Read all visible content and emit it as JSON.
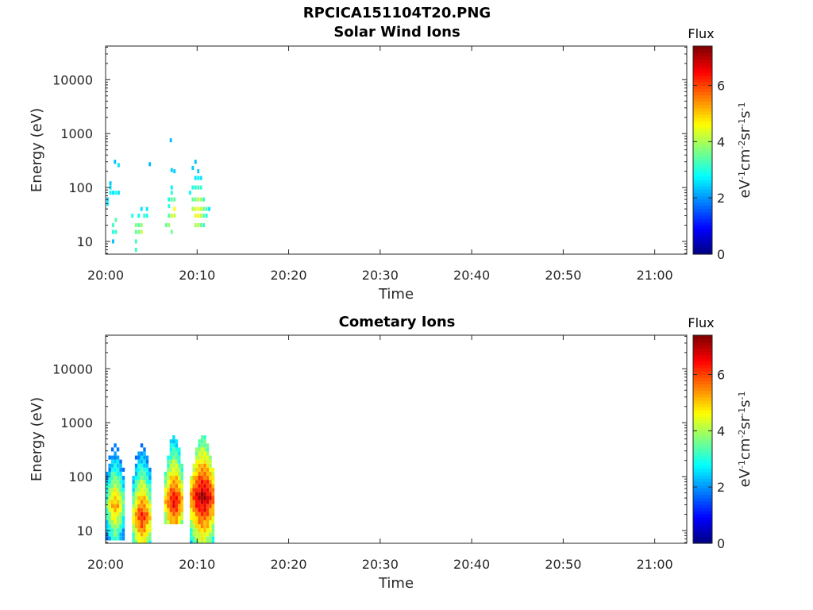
{
  "figure": {
    "suptitle": "RPCICA151104T20.PNG"
  },
  "colormap": "jet",
  "colors": {
    "axis": "#262626",
    "background": "#ffffff"
  },
  "chart_data": [
    {
      "type": "heatmap",
      "title": "Solar Wind Ions",
      "xlabel": "Time",
      "ylabel": "Energy (eV)",
      "x_ticks": [
        "20:00",
        "20:10",
        "20:20",
        "20:30",
        "20:40",
        "20:50",
        "21:00"
      ],
      "x_tick_minutes": [
        0,
        10,
        20,
        30,
        40,
        50,
        60
      ],
      "xlim_minutes": [
        0,
        63.5
      ],
      "y_scale": "log",
      "y_ticks": [
        "10",
        "100",
        "1000",
        "10000"
      ],
      "y_tick_values": [
        10,
        100,
        1000,
        10000
      ],
      "ylim": [
        5.8,
        42000
      ],
      "colorbar": {
        "title": "Flux",
        "label": "eV-1cm-2sr-1s-1",
        "ticks": [
          "0",
          "2",
          "4",
          "6"
        ],
        "tick_values": [
          0,
          2,
          4,
          6
        ],
        "range": [
          0,
          7.4
        ]
      },
      "cells": [
        [
          0.1,
          0.35,
          60,
          2.5
        ],
        [
          0.1,
          0.35,
          50,
          2.7
        ],
        [
          0.4,
          0.65,
          80,
          2.8
        ],
        [
          0.7,
          0.95,
          80,
          2.6
        ],
        [
          0.7,
          0.95,
          20,
          3.2
        ],
        [
          0.7,
          0.95,
          15,
          3.0
        ],
        [
          0.7,
          0.95,
          10,
          2.3
        ],
        [
          1.0,
          1.25,
          25,
          3.4
        ],
        [
          1.0,
          1.25,
          15,
          3.2
        ],
        [
          1.0,
          1.25,
          80,
          2.9
        ],
        [
          1.3,
          1.55,
          80,
          2.6
        ],
        [
          0.9,
          1.15,
          300,
          2.3
        ],
        [
          1.3,
          1.55,
          260,
          2.6
        ],
        [
          0.4,
          0.65,
          120,
          2.4
        ],
        [
          0.4,
          0.65,
          100,
          2.6
        ],
        [
          2.8,
          3.05,
          30,
          3.0
        ],
        [
          3.2,
          3.45,
          10,
          3.3
        ],
        [
          3.2,
          3.45,
          15,
          3.5
        ],
        [
          3.2,
          3.45,
          20,
          3.8
        ],
        [
          3.5,
          3.75,
          15,
          3.6
        ],
        [
          3.5,
          3.75,
          20,
          3.3
        ],
        [
          3.5,
          3.75,
          30,
          2.8
        ],
        [
          3.8,
          4.05,
          20,
          3.9
        ],
        [
          3.8,
          4.05,
          15,
          4.2
        ],
        [
          3.8,
          4.05,
          40,
          2.6
        ],
        [
          4.1,
          4.35,
          30,
          3.2
        ],
        [
          4.4,
          4.65,
          30,
          2.9
        ],
        [
          4.4,
          4.65,
          40,
          2.6
        ],
        [
          4.7,
          4.95,
          270,
          2.3
        ],
        [
          3.2,
          3.45,
          7,
          3.2
        ],
        [
          6.5,
          6.75,
          20,
          3.5
        ],
        [
          6.8,
          7.05,
          20,
          3.9
        ],
        [
          6.8,
          7.05,
          30,
          3.4
        ],
        [
          6.8,
          7.05,
          60,
          2.9
        ],
        [
          6.8,
          7.05,
          45,
          3.1
        ],
        [
          7.1,
          7.35,
          30,
          4.3
        ],
        [
          7.1,
          7.35,
          60,
          3.6
        ],
        [
          7.1,
          7.35,
          80,
          3.1
        ],
        [
          7.1,
          7.35,
          100,
          2.7
        ],
        [
          7.1,
          7.35,
          210,
          2.4
        ],
        [
          7.4,
          7.65,
          40,
          4.6
        ],
        [
          7.4,
          7.65,
          30,
          4.2
        ],
        [
          7.4,
          7.65,
          60,
          3.4
        ],
        [
          7.4,
          7.65,
          200,
          2.4
        ],
        [
          7.0,
          7.25,
          750,
          2.3
        ],
        [
          7.1,
          7.35,
          15,
          3.6
        ],
        [
          9.1,
          9.35,
          80,
          2.8
        ],
        [
          9.4,
          9.65,
          100,
          3.0
        ],
        [
          9.4,
          9.65,
          60,
          3.5
        ],
        [
          9.4,
          9.65,
          40,
          4.0
        ],
        [
          9.4,
          9.65,
          230,
          2.4
        ],
        [
          9.7,
          9.95,
          60,
          3.6
        ],
        [
          9.7,
          9.95,
          40,
          4.3
        ],
        [
          9.7,
          9.95,
          30,
          4.4
        ],
        [
          9.7,
          9.95,
          20,
          4.0
        ],
        [
          9.7,
          9.95,
          100,
          3.0
        ],
        [
          9.7,
          9.95,
          150,
          2.6
        ],
        [
          9.7,
          9.95,
          300,
          2.3
        ],
        [
          10.0,
          10.25,
          40,
          4.5
        ],
        [
          10.0,
          10.25,
          60,
          4.1
        ],
        [
          10.0,
          10.25,
          30,
          4.7
        ],
        [
          10.0,
          10.25,
          20,
          4.1
        ],
        [
          10.0,
          10.25,
          100,
          3.3
        ],
        [
          10.0,
          10.25,
          150,
          2.7
        ],
        [
          10.0,
          10.25,
          200,
          2.4
        ],
        [
          10.3,
          10.55,
          40,
          4.2
        ],
        [
          10.3,
          10.55,
          60,
          4.0
        ],
        [
          10.3,
          10.55,
          30,
          4.1
        ],
        [
          10.3,
          10.55,
          100,
          3.1
        ],
        [
          10.3,
          10.55,
          20,
          3.5
        ],
        [
          10.3,
          10.55,
          150,
          2.6
        ],
        [
          10.6,
          10.85,
          40,
          3.6
        ],
        [
          10.6,
          10.85,
          30,
          3.5
        ],
        [
          10.6,
          10.85,
          60,
          3.1
        ],
        [
          10.6,
          10.85,
          20,
          3.2
        ],
        [
          10.9,
          11.15,
          40,
          3.3
        ],
        [
          10.9,
          11.15,
          30,
          2.9
        ],
        [
          11.2,
          11.45,
          40,
          2.6
        ]
      ]
    },
    {
      "type": "heatmap",
      "title": "Cometary Ions",
      "xlabel": "Time",
      "ylabel": "Energy (eV)",
      "x_ticks": [
        "20:00",
        "20:10",
        "20:20",
        "20:30",
        "20:40",
        "20:50",
        "21:00"
      ],
      "x_tick_minutes": [
        0,
        10,
        20,
        30,
        40,
        50,
        60
      ],
      "xlim_minutes": [
        0,
        63.5
      ],
      "y_scale": "log",
      "y_ticks": [
        "10",
        "100",
        "1000",
        "10000"
      ],
      "y_tick_values": [
        10,
        100,
        1000,
        10000
      ],
      "ylim": [
        5.8,
        42000
      ],
      "colorbar": {
        "title": "Flux",
        "label": "eV-1cm-2sr-1s-1",
        "ticks": [
          "0",
          "2",
          "4",
          "6"
        ],
        "tick_values": [
          0,
          2,
          4,
          6
        ],
        "range": [
          0,
          7.4
        ]
      },
      "bursts": [
        {
          "t0": 0.0,
          "t1": 1.9,
          "peak": 5.4,
          "lo": 6.5,
          "hi": 1100,
          "core": 30
        },
        {
          "t0": 2.9,
          "t1": 4.9,
          "peak": 6.3,
          "lo": 6.0,
          "hi": 650,
          "core": 18
        },
        {
          "t0": 6.4,
          "t1": 8.4,
          "peak": 6.6,
          "lo": 12,
          "hi": 600,
          "core": 35
        },
        {
          "t0": 9.2,
          "t1": 11.9,
          "peak": 7.2,
          "lo": 6.0,
          "hi": 600,
          "core": 42
        }
      ]
    }
  ]
}
